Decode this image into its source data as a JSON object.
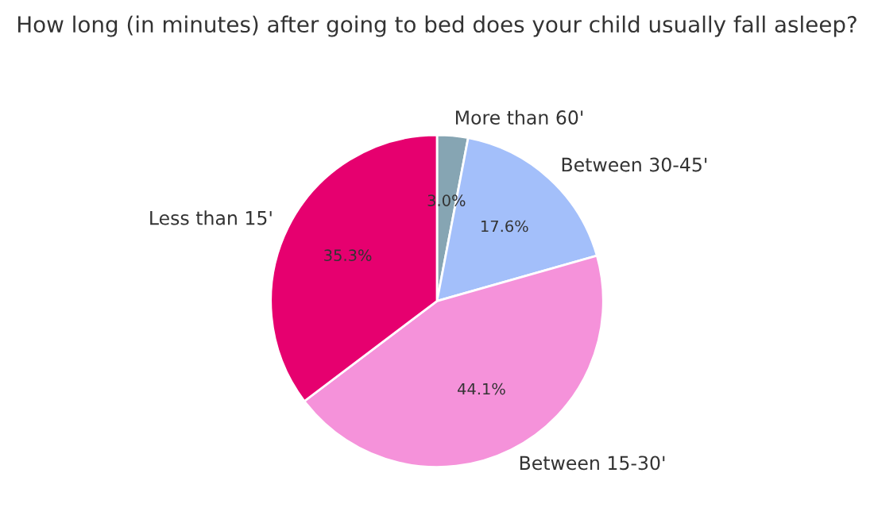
{
  "chart_data": {
    "type": "pie",
    "title": "How long (in minutes) after going to bed does your child usually fall asleep?",
    "categories": [
      "More than 60'",
      "Between 30-45'",
      "Between 15-30'",
      "Less than 15'"
    ],
    "values": [
      3.0,
      17.6,
      44.1,
      35.3
    ],
    "value_labels": [
      "3.0%",
      "17.6%",
      "44.1%",
      "35.3%"
    ],
    "colors": [
      "#86a5b3",
      "#a3bffa",
      "#f592da",
      "#e6006f"
    ]
  }
}
